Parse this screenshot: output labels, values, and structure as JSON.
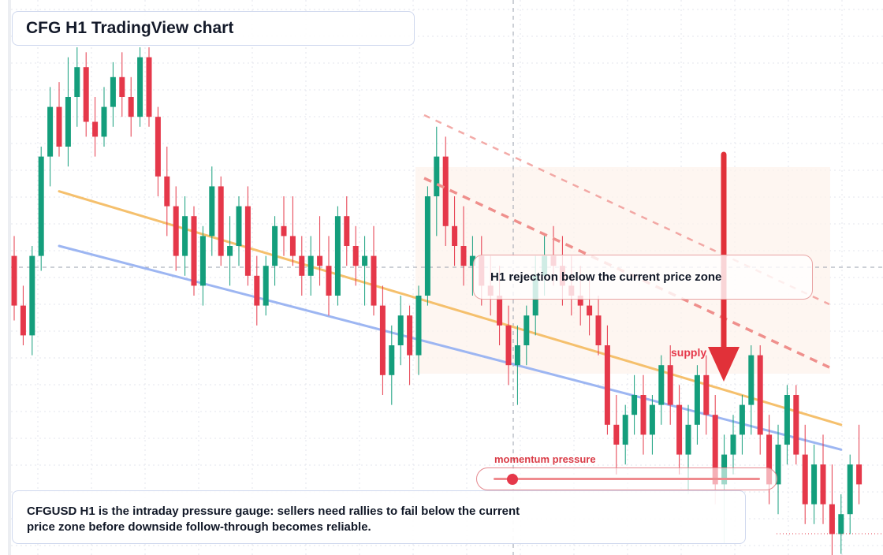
{
  "title": "CFG H1 TradingView chart",
  "callout": "H1 rejection below the current price zone",
  "supply_label": "supply",
  "gauge": {
    "label": "momentum pressure",
    "level": 0.07
  },
  "description": "CFGUSD H1 is the intraday pressure gauge: sellers need rallies to fail below the current price zone before downside follow-through becomes reliable.",
  "colors": {
    "bull": "#149e7c",
    "bear": "#e5384a",
    "trend_upper": "#f5c06d",
    "trend_lower": "#9db6f2",
    "channel": "#ef8f8c",
    "zone": "#fdf3ec"
  },
  "chart_data": {
    "type": "candlestick",
    "title": "CFG H1 TradingView chart",
    "xlabel": "",
    "ylabel": "",
    "ylim": [
      0,
      100
    ],
    "grid": true,
    "candles": [
      [
        58,
        62,
        45,
        48
      ],
      [
        48,
        52,
        40,
        42
      ],
      [
        42,
        60,
        38,
        58
      ],
      [
        58,
        80,
        55,
        78
      ],
      [
        78,
        92,
        72,
        88
      ],
      [
        88,
        93,
        78,
        80
      ],
      [
        80,
        98,
        76,
        90
      ],
      [
        90,
        100,
        84,
        96
      ],
      [
        96,
        99,
        82,
        85
      ],
      [
        85,
        90,
        78,
        82
      ],
      [
        82,
        92,
        80,
        88
      ],
      [
        88,
        97,
        84,
        94
      ],
      [
        94,
        99,
        86,
        90
      ],
      [
        90,
        94,
        82,
        86
      ],
      [
        86,
        100,
        84,
        98
      ],
      [
        98,
        100,
        84,
        86
      ],
      [
        86,
        88,
        70,
        74
      ],
      [
        74,
        80,
        62,
        68
      ],
      [
        68,
        72,
        55,
        58
      ],
      [
        58,
        70,
        54,
        66
      ],
      [
        66,
        68,
        50,
        52
      ],
      [
        52,
        64,
        48,
        62
      ],
      [
        62,
        76,
        58,
        72
      ],
      [
        72,
        74,
        56,
        58
      ],
      [
        58,
        66,
        52,
        60
      ],
      [
        60,
        70,
        56,
        68
      ],
      [
        68,
        72,
        52,
        54
      ],
      [
        54,
        58,
        44,
        48
      ],
      [
        48,
        58,
        46,
        56
      ],
      [
        56,
        66,
        52,
        64
      ],
      [
        64,
        70,
        58,
        62
      ],
      [
        62,
        70,
        56,
        58
      ],
      [
        58,
        62,
        50,
        54
      ],
      [
        54,
        62,
        50,
        58
      ],
      [
        58,
        66,
        52,
        56
      ],
      [
        56,
        62,
        46,
        50
      ],
      [
        50,
        68,
        48,
        66
      ],
      [
        66,
        70,
        56,
        60
      ],
      [
        60,
        64,
        52,
        56
      ],
      [
        56,
        62,
        48,
        58
      ],
      [
        58,
        64,
        46,
        48
      ],
      [
        48,
        52,
        30,
        34
      ],
      [
        34,
        44,
        28,
        40
      ],
      [
        40,
        50,
        36,
        46
      ],
      [
        46,
        48,
        32,
        38
      ],
      [
        38,
        52,
        34,
        50
      ],
      [
        50,
        72,
        48,
        70
      ],
      [
        70,
        84,
        62,
        78
      ],
      [
        78,
        82,
        60,
        64
      ],
      [
        64,
        70,
        56,
        60
      ],
      [
        60,
        68,
        52,
        56
      ],
      [
        56,
        62,
        50,
        58
      ],
      [
        58,
        62,
        48,
        52
      ],
      [
        52,
        58,
        46,
        50
      ],
      [
        50,
        56,
        40,
        44
      ],
      [
        44,
        48,
        32,
        36
      ],
      [
        36,
        44,
        28,
        40
      ],
      [
        40,
        48,
        36,
        46
      ],
      [
        46,
        58,
        42,
        54
      ],
      [
        54,
        62,
        50,
        58
      ],
      [
        58,
        64,
        52,
        56
      ],
      [
        56,
        62,
        48,
        52
      ],
      [
        52,
        58,
        46,
        50
      ],
      [
        50,
        56,
        44,
        48
      ],
      [
        48,
        54,
        42,
        46
      ],
      [
        46,
        50,
        38,
        40
      ],
      [
        40,
        44,
        22,
        24
      ],
      [
        24,
        30,
        14,
        20
      ],
      [
        20,
        28,
        16,
        26
      ],
      [
        26,
        34,
        22,
        30
      ],
      [
        30,
        34,
        18,
        22
      ],
      [
        22,
        30,
        18,
        28
      ],
      [
        28,
        38,
        24,
        36
      ],
      [
        36,
        40,
        24,
        28
      ],
      [
        28,
        32,
        14,
        18
      ],
      [
        18,
        28,
        10,
        24
      ],
      [
        24,
        36,
        20,
        34
      ],
      [
        34,
        38,
        22,
        26
      ],
      [
        26,
        30,
        8,
        12
      ],
      [
        12,
        22,
        0,
        18
      ],
      [
        18,
        26,
        14,
        22
      ],
      [
        22,
        30,
        18,
        28
      ],
      [
        28,
        40,
        22,
        38
      ],
      [
        38,
        40,
        18,
        22
      ],
      [
        22,
        26,
        8,
        12
      ],
      [
        12,
        24,
        6,
        20
      ],
      [
        20,
        32,
        16,
        30
      ],
      [
        30,
        32,
        16,
        18
      ],
      [
        18,
        24,
        4,
        8
      ],
      [
        8,
        20,
        4,
        16
      ],
      [
        16,
        22,
        4,
        8
      ],
      [
        8,
        16,
        -4,
        2
      ],
      [
        2,
        10,
        -2,
        6
      ],
      [
        6,
        18,
        2,
        16
      ],
      [
        16,
        24,
        8,
        12
      ]
    ],
    "trendlines": [
      {
        "name": "",
        "from": [
          5,
          71
        ],
        "to": [
          92,
          24
        ]
      },
      {
        "name": "",
        "from": [
          5,
          60
        ],
        "to": [
          92,
          19
        ]
      }
    ]
  }
}
